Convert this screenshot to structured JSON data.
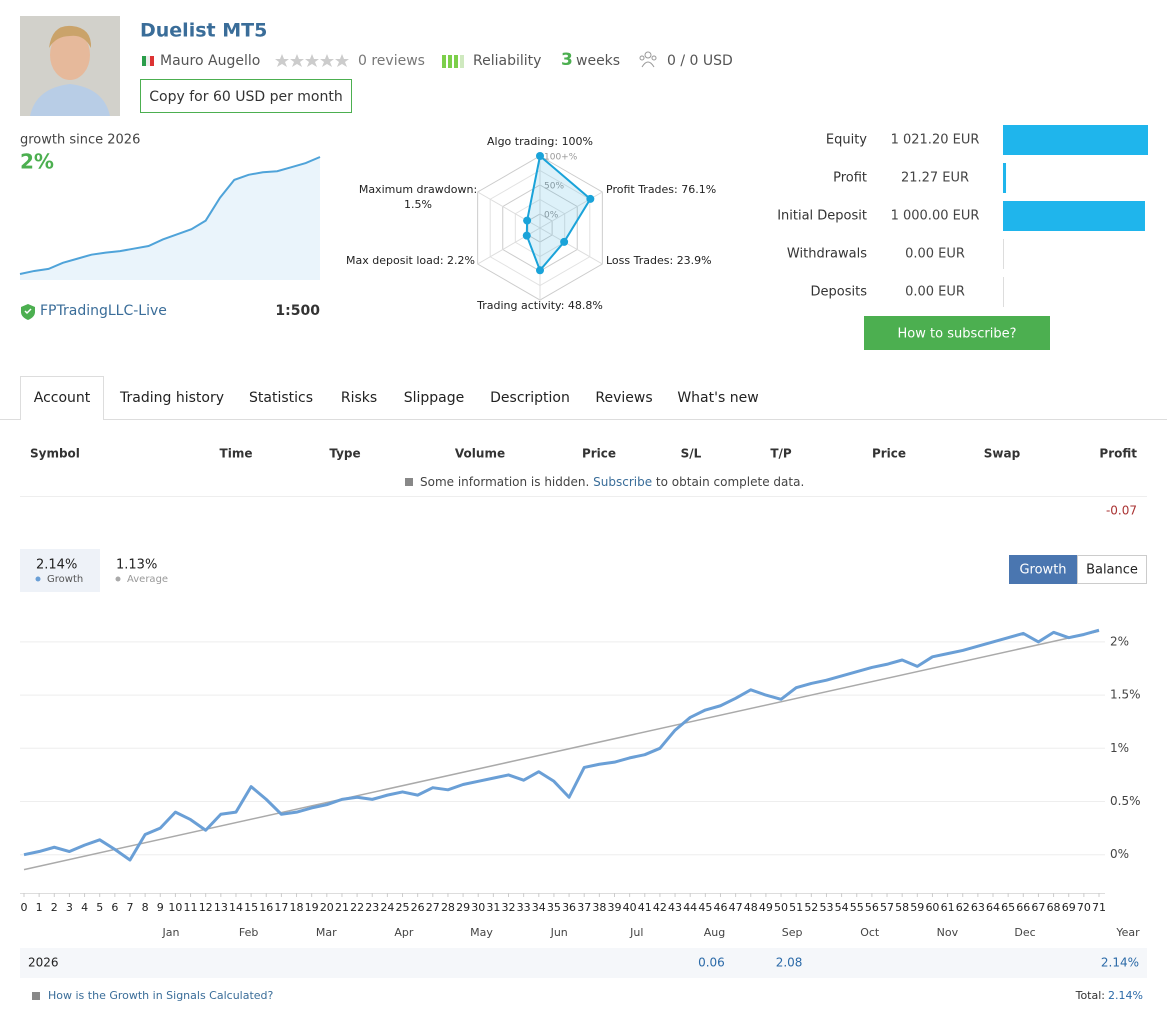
{
  "header": {
    "title": "Duelist MT5",
    "author": "Mauro Augello",
    "reviews": "0 reviews",
    "reliability": "Reliability",
    "weeks_count": "3",
    "weeks": "weeks",
    "subscribers": "0 / 0 USD",
    "copy_button": "Copy for 60 USD per month"
  },
  "growth_mini": {
    "label": "growth since 2026",
    "value": "2%",
    "broker": "FPTradingLLC-Live",
    "leverage": "1:500",
    "color": "#4fa3d9",
    "values": [
      0,
      0.06,
      0.1,
      0.22,
      0.3,
      0.38,
      0.42,
      0.45,
      0.5,
      0.55,
      0.68,
      0.78,
      0.88,
      1.05,
      1.5,
      1.85,
      1.95,
      2.0,
      2.02,
      2.1,
      2.18,
      2.3
    ]
  },
  "radar": {
    "type": "radar",
    "color": "#1aa3d9",
    "rticks": [
      {
        "value": 0,
        "label": "0%"
      },
      {
        "value": 50,
        "label": "50%"
      },
      {
        "value": 100,
        "label": "100+%"
      }
    ],
    "axes": [
      {
        "name": "Algo trading:",
        "value": 100,
        "value_label": "100%"
      },
      {
        "name": "Profit Trades:",
        "value": 76.1,
        "value_label": "76.1%"
      },
      {
        "name": "Loss Trades:",
        "value": 23.9,
        "value_label": "23.9%"
      },
      {
        "name": "Trading activity:",
        "value": 48.8,
        "value_label": "48.8%"
      },
      {
        "name": "Max deposit load:",
        "value": 2.2,
        "value_label": "2.2%"
      },
      {
        "name": "Maximum drawdown:",
        "value": 1.5,
        "value_label": "1.5%"
      }
    ]
  },
  "account": {
    "type": "bar",
    "color": "#1fb5ec",
    "categories": [
      "Equity",
      "Profit",
      "Initial Deposit",
      "Withdrawals",
      "Deposits"
    ],
    "values": [
      1021.2,
      21.27,
      1000,
      0,
      0
    ],
    "value_labels": [
      "1 021.20 EUR",
      "21.27 EUR",
      "1 000.00 EUR",
      "0.00 EUR",
      "0.00 EUR"
    ],
    "button": "How to subscribe?"
  },
  "tabs": [
    "Account",
    "Trading history",
    "Statistics",
    "Risks",
    "Slippage",
    "Description",
    "Reviews",
    "What's new"
  ],
  "table": {
    "headers": [
      "Symbol",
      "Time",
      "Type",
      "Volume",
      "Price",
      "S/L",
      "T/P",
      "Price",
      "Swap",
      "Profit"
    ],
    "note": "Some information is hidden.",
    "note_link": "Subscribe",
    "note_rest": "to obtain complete data.",
    "profit_total": -0.07
  },
  "growth_chart": {
    "type": "line",
    "buttons": [
      "Growth",
      "Balance"
    ],
    "ylim": [
      -0.36,
      2.3
    ],
    "yticks": [
      {
        "value": 0,
        "label": "0%"
      },
      {
        "value": 0.5,
        "label": "0.5%"
      },
      {
        "value": 1,
        "label": "1%"
      },
      {
        "value": 1.5,
        "label": "1.5%"
      },
      {
        "value": 2,
        "label": "2%"
      }
    ],
    "xlim": [
      0,
      71
    ],
    "xticks": [
      0,
      1,
      2,
      3,
      4,
      5,
      6,
      7,
      8,
      9,
      10,
      11,
      12,
      13,
      14,
      15,
      16,
      17,
      18,
      19,
      20,
      21,
      22,
      23,
      24,
      25,
      26,
      27,
      28,
      29,
      30,
      31,
      32,
      33,
      34,
      35,
      36,
      37,
      38,
      39,
      40,
      41,
      42,
      43,
      44,
      45,
      46,
      47,
      48,
      49,
      50,
      51,
      52,
      53,
      54,
      55,
      56,
      57,
      58,
      59,
      60,
      61,
      62,
      63,
      64,
      65,
      66,
      67,
      68,
      69,
      70,
      71
    ],
    "months": [
      "Jan",
      "Feb",
      "Mar",
      "Apr",
      "May",
      "Jun",
      "Jul",
      "Aug",
      "Sep",
      "Oct",
      "Nov",
      "Dec"
    ],
    "year_label": "Year",
    "series": [
      {
        "name": "Growth",
        "summary_label": "2.14%",
        "color": "#6a9fd6",
        "x": [
          0,
          1,
          2,
          3,
          4,
          5,
          6,
          7,
          8,
          9,
          10,
          11,
          12,
          13,
          14,
          15,
          16,
          17,
          18,
          19,
          20,
          21,
          22,
          23,
          24,
          25,
          26,
          27,
          28,
          29,
          30,
          31,
          32,
          33,
          34,
          35,
          36,
          37,
          38,
          39,
          40,
          41,
          42,
          43,
          44,
          45,
          46,
          47,
          48,
          49,
          50,
          51,
          52,
          53,
          54,
          55,
          56,
          57,
          58,
          59,
          60,
          61,
          62,
          63,
          64,
          65,
          66,
          67,
          68,
          69,
          70,
          71
        ],
        "values": [
          0,
          0.03,
          0.07,
          0.03,
          0.09,
          0.14,
          0.05,
          -0.05,
          0.19,
          0.25,
          0.4,
          0.33,
          0.23,
          0.38,
          0.4,
          0.64,
          0.52,
          0.38,
          0.4,
          0.44,
          0.47,
          0.52,
          0.54,
          0.52,
          0.56,
          0.59,
          0.56,
          0.63,
          0.61,
          0.66,
          0.69,
          0.72,
          0.75,
          0.7,
          0.78,
          0.69,
          0.54,
          0.82,
          0.85,
          0.87,
          0.91,
          0.94,
          1.0,
          1.17,
          1.29,
          1.36,
          1.4,
          1.47,
          1.55,
          1.5,
          1.46,
          1.57,
          1.61,
          1.64,
          1.68,
          1.72,
          1.76,
          1.79,
          1.83,
          1.77,
          1.86,
          1.89,
          1.92,
          1.96,
          2.0,
          2.04,
          2.08,
          2.0,
          2.09,
          2.04,
          2.07,
          2.11
        ]
      },
      {
        "name": "Average",
        "summary_label": "1.13%",
        "color": "#aaaaaa",
        "x": [
          0,
          71
        ],
        "values": [
          -0.14,
          2.1
        ]
      }
    ],
    "year_table": {
      "year": "2026",
      "months": [
        null,
        null,
        null,
        null,
        null,
        null,
        null,
        0.06,
        2.08,
        null,
        null,
        null
      ],
      "total": "2.14%"
    },
    "footer_link": "How is the Growth in Signals Calculated?",
    "footer_total": "Total:",
    "footer_total_value": "2.14%"
  }
}
